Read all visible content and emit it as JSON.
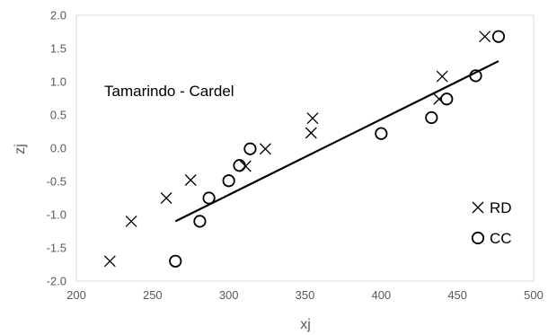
{
  "chart_data": {
    "type": "scatter",
    "xlabel": "xj",
    "ylabel": "zj",
    "xlim": [
      200,
      500
    ],
    "ylim": [
      -2.0,
      2.0
    ],
    "xticks": [
      "200",
      "250",
      "300",
      "350",
      "400",
      "450",
      "500"
    ],
    "yticks": [
      "2.0",
      "1.5",
      "1.0",
      "0.5",
      "0.0",
      "-0.5",
      "-1.0",
      "-1.5",
      "-2.0"
    ],
    "grid": false,
    "legend_position": "bottom-right",
    "annotation": "Tamarindo - Cardel",
    "series": [
      {
        "name": "RD",
        "marker": "x",
        "color": "#000000",
        "points": [
          [
            222,
            -1.7
          ],
          [
            236,
            -1.1
          ],
          [
            259,
            -0.75
          ],
          [
            275,
            -0.48
          ],
          [
            311,
            -0.27
          ],
          [
            324,
            -0.01
          ],
          [
            354,
            0.23
          ],
          [
            355,
            0.45
          ],
          [
            438,
            0.74
          ],
          [
            440,
            1.08
          ],
          [
            468,
            1.68
          ]
        ]
      },
      {
        "name": "CC",
        "marker": "circle",
        "color": "#000000",
        "points": [
          [
            265,
            -1.7
          ],
          [
            281,
            -1.1
          ],
          [
            287,
            -0.75
          ],
          [
            300,
            -0.49
          ],
          [
            307,
            -0.26
          ],
          [
            314,
            -0.01
          ],
          [
            400,
            0.22
          ],
          [
            433,
            0.46
          ],
          [
            443,
            0.74
          ],
          [
            462,
            1.09
          ],
          [
            477,
            1.68
          ]
        ]
      }
    ],
    "trendline": {
      "x": [
        265,
        477
      ],
      "y": [
        -1.1,
        1.31
      ],
      "color": "#000000"
    }
  }
}
